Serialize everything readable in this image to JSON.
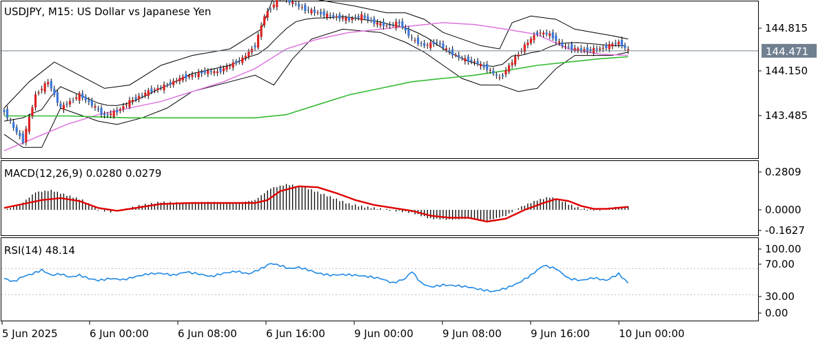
{
  "chart_data": {
    "type": "candlestick",
    "title": "USDJPY, M15:  US Dollar vs Japanese Yen",
    "symbol": "USDJPY",
    "timeframe": "M15",
    "description": "US Dollar vs Japanese Yen",
    "current_price": "144.471",
    "time_labels": [
      "5 Jun 2025",
      "6 Jun 00:00",
      "6 Jun 08:00",
      "6 Jun 16:00",
      "9 Jun 00:00",
      "9 Jun 08:00",
      "9 Jun 16:00",
      "10 Jun 00:00"
    ],
    "colors": {
      "bull": "#dd2222",
      "bear": "#3a78d8",
      "bollinger": "#000000",
      "ma_fast": "#e07de0",
      "ma_slow": "#33bb33",
      "macd_histogram": "#000000",
      "macd_signal": "#e00000",
      "rsi": "#1e88e5",
      "price_line": "#708090",
      "price_label_bg": "#708090"
    },
    "price_panel": {
      "ticks": [
        "144.815",
        "144.150",
        "143.485"
      ],
      "ylim": [
        142.9,
        145.55
      ],
      "price_path": [
        [
          0,
          143.55
        ],
        [
          3,
          143.3
        ],
        [
          6,
          143.1
        ],
        [
          10,
          143.8
        ],
        [
          14,
          144.0
        ],
        [
          18,
          143.6
        ],
        [
          24,
          143.8
        ],
        [
          28,
          143.65
        ],
        [
          32,
          143.48
        ],
        [
          36,
          143.55
        ],
        [
          40,
          143.7
        ],
        [
          46,
          143.85
        ],
        [
          52,
          143.95
        ],
        [
          56,
          144.05
        ],
        [
          60,
          144.1
        ],
        [
          64,
          144.15
        ],
        [
          68,
          144.15
        ],
        [
          72,
          144.25
        ],
        [
          76,
          144.35
        ],
        [
          80,
          144.55
        ],
        [
          83,
          145.0
        ],
        [
          88,
          145.3
        ],
        [
          92,
          145.2
        ],
        [
          96,
          145.1
        ],
        [
          100,
          145.05
        ],
        [
          104,
          145.0
        ],
        [
          110,
          144.95
        ],
        [
          114,
          145.0
        ],
        [
          118,
          144.9
        ],
        [
          122,
          144.85
        ],
        [
          126,
          144.9
        ],
        [
          130,
          144.65
        ],
        [
          134,
          144.55
        ],
        [
          138,
          144.6
        ],
        [
          142,
          144.45
        ],
        [
          146,
          144.35
        ],
        [
          150,
          144.3
        ],
        [
          154,
          144.2
        ],
        [
          158,
          144.05
        ],
        [
          162,
          144.3
        ],
        [
          166,
          144.55
        ],
        [
          170,
          144.75
        ],
        [
          174,
          144.72
        ],
        [
          178,
          144.55
        ],
        [
          182,
          144.5
        ],
        [
          186,
          144.48
        ],
        [
          190,
          144.5
        ],
        [
          194,
          144.57
        ],
        [
          196,
          144.6
        ],
        [
          199,
          144.47
        ]
      ],
      "bollinger_upper": [
        [
          0,
          143.6
        ],
        [
          8,
          144.0
        ],
        [
          16,
          144.3
        ],
        [
          24,
          144.1
        ],
        [
          32,
          143.9
        ],
        [
          40,
          143.95
        ],
        [
          50,
          144.25
        ],
        [
          60,
          144.4
        ],
        [
          72,
          144.5
        ],
        [
          82,
          144.8
        ],
        [
          86,
          145.3
        ],
        [
          92,
          145.45
        ],
        [
          100,
          145.25
        ],
        [
          112,
          145.15
        ],
        [
          122,
          145.05
        ],
        [
          128,
          145.05
        ],
        [
          134,
          144.95
        ],
        [
          140,
          144.75
        ],
        [
          146,
          144.65
        ],
        [
          152,
          144.55
        ],
        [
          158,
          144.5
        ],
        [
          162,
          144.9
        ],
        [
          168,
          145.0
        ],
        [
          176,
          144.95
        ],
        [
          182,
          144.8
        ],
        [
          188,
          144.75
        ],
        [
          194,
          144.7
        ],
        [
          199,
          144.65
        ]
      ],
      "bollinger_lower": [
        [
          0,
          143.2
        ],
        [
          6,
          143.0
        ],
        [
          12,
          143.0
        ],
        [
          18,
          143.6
        ],
        [
          24,
          143.5
        ],
        [
          30,
          143.4
        ],
        [
          36,
          143.35
        ],
        [
          44,
          143.45
        ],
        [
          52,
          143.6
        ],
        [
          60,
          143.85
        ],
        [
          72,
          144.0
        ],
        [
          80,
          144.1
        ],
        [
          86,
          143.95
        ],
        [
          92,
          144.35
        ],
        [
          98,
          144.65
        ],
        [
          108,
          144.8
        ],
        [
          120,
          144.75
        ],
        [
          128,
          144.6
        ],
        [
          134,
          144.45
        ],
        [
          140,
          144.25
        ],
        [
          146,
          144.05
        ],
        [
          152,
          143.95
        ],
        [
          158,
          143.95
        ],
        [
          164,
          143.85
        ],
        [
          170,
          143.9
        ],
        [
          176,
          144.2
        ],
        [
          182,
          144.4
        ],
        [
          188,
          144.4
        ],
        [
          194,
          144.4
        ],
        [
          199,
          144.45
        ]
      ],
      "ma_fast": [
        [
          0,
          142.95
        ],
        [
          10,
          143.15
        ],
        [
          20,
          143.35
        ],
        [
          30,
          143.5
        ],
        [
          40,
          143.6
        ],
        [
          50,
          143.7
        ],
        [
          60,
          143.85
        ],
        [
          70,
          144.0
        ],
        [
          80,
          144.2
        ],
        [
          90,
          144.5
        ],
        [
          100,
          144.65
        ],
        [
          110,
          144.75
        ],
        [
          120,
          144.8
        ],
        [
          130,
          144.85
        ],
        [
          140,
          144.9
        ],
        [
          150,
          144.87
        ],
        [
          160,
          144.8
        ],
        [
          170,
          144.72
        ],
        [
          180,
          144.5
        ],
        [
          190,
          144.42
        ],
        [
          199,
          144.4
        ]
      ],
      "ma_slow": [
        [
          0,
          143.48
        ],
        [
          20,
          143.48
        ],
        [
          40,
          143.45
        ],
        [
          60,
          143.45
        ],
        [
          80,
          143.45
        ],
        [
          90,
          143.5
        ],
        [
          100,
          143.65
        ],
        [
          110,
          143.8
        ],
        [
          120,
          143.9
        ],
        [
          130,
          144.0
        ],
        [
          140,
          144.05
        ],
        [
          150,
          144.1
        ],
        [
          160,
          144.17
        ],
        [
          170,
          144.25
        ],
        [
          180,
          144.3
        ],
        [
          190,
          144.35
        ],
        [
          199,
          144.38
        ]
      ]
    },
    "macd_panel": {
      "label": "MACD(12,26,9) 0.0280 0.0279",
      "ticks": [
        "0.2809",
        "0.0000",
        "-0.1627"
      ],
      "ylim": [
        -0.205,
        0.33
      ],
      "histogram": [
        [
          0,
          0.0
        ],
        [
          5,
          0.05
        ],
        [
          10,
          0.18
        ],
        [
          15,
          0.2
        ],
        [
          20,
          0.15
        ],
        [
          25,
          0.1
        ],
        [
          30,
          0.0
        ],
        [
          34,
          -0.02
        ],
        [
          38,
          0.0
        ],
        [
          44,
          0.05
        ],
        [
          50,
          0.08
        ],
        [
          58,
          0.07
        ],
        [
          66,
          0.08
        ],
        [
          74,
          0.07
        ],
        [
          80,
          0.1
        ],
        [
          85,
          0.22
        ],
        [
          90,
          0.26
        ],
        [
          95,
          0.24
        ],
        [
          100,
          0.18
        ],
        [
          105,
          0.12
        ],
        [
          110,
          0.06
        ],
        [
          115,
          0.03
        ],
        [
          120,
          0.01
        ],
        [
          125,
          -0.01
        ],
        [
          130,
          -0.03
        ],
        [
          136,
          -0.09
        ],
        [
          142,
          -0.1
        ],
        [
          148,
          -0.09
        ],
        [
          154,
          -0.11
        ],
        [
          160,
          -0.06
        ],
        [
          164,
          0.02
        ],
        [
          170,
          0.1
        ],
        [
          174,
          0.13
        ],
        [
          178,
          0.09
        ],
        [
          182,
          0.03
        ],
        [
          186,
          0.0
        ],
        [
          190,
          0.0
        ],
        [
          194,
          0.02
        ],
        [
          199,
          0.03
        ]
      ],
      "signal": [
        [
          0,
          0.02
        ],
        [
          6,
          0.06
        ],
        [
          12,
          0.1
        ],
        [
          18,
          0.12
        ],
        [
          24,
          0.09
        ],
        [
          30,
          0.02
        ],
        [
          36,
          -0.01
        ],
        [
          42,
          0.02
        ],
        [
          50,
          0.06
        ],
        [
          60,
          0.07
        ],
        [
          70,
          0.07
        ],
        [
          80,
          0.07
        ],
        [
          84,
          0.1
        ],
        [
          88,
          0.19
        ],
        [
          94,
          0.24
        ],
        [
          100,
          0.23
        ],
        [
          106,
          0.17
        ],
        [
          112,
          0.1
        ],
        [
          118,
          0.05
        ],
        [
          124,
          0.02
        ],
        [
          130,
          -0.01
        ],
        [
          136,
          -0.06
        ],
        [
          142,
          -0.08
        ],
        [
          148,
          -0.08
        ],
        [
          154,
          -0.12
        ],
        [
          160,
          -0.09
        ],
        [
          166,
          0.0
        ],
        [
          172,
          0.07
        ],
        [
          176,
          0.11
        ],
        [
          180,
          0.09
        ],
        [
          184,
          0.04
        ],
        [
          188,
          0.01
        ],
        [
          192,
          0.01
        ],
        [
          199,
          0.03
        ]
      ]
    },
    "rsi_panel": {
      "label": "RSI(14) 48.14",
      "ticks": [
        "100.00",
        "70.00",
        "30.00",
        "0.00"
      ],
      "ylim": [
        0,
        100
      ],
      "values": [
        [
          0,
          55
        ],
        [
          3,
          50
        ],
        [
          6,
          58
        ],
        [
          9,
          62
        ],
        [
          12,
          68
        ],
        [
          15,
          60
        ],
        [
          18,
          62
        ],
        [
          21,
          57
        ],
        [
          24,
          60
        ],
        [
          27,
          55
        ],
        [
          30,
          52
        ],
        [
          34,
          55
        ],
        [
          38,
          53
        ],
        [
          42,
          58
        ],
        [
          46,
          62
        ],
        [
          50,
          63
        ],
        [
          54,
          60
        ],
        [
          58,
          65
        ],
        [
          62,
          62
        ],
        [
          66,
          58
        ],
        [
          70,
          63
        ],
        [
          74,
          66
        ],
        [
          78,
          62
        ],
        [
          82,
          70
        ],
        [
          85,
          78
        ],
        [
          88,
          75
        ],
        [
          91,
          70
        ],
        [
          94,
          72
        ],
        [
          97,
          68
        ],
        [
          100,
          63
        ],
        [
          104,
          60
        ],
        [
          108,
          61
        ],
        [
          112,
          60
        ],
        [
          116,
          58
        ],
        [
          120,
          55
        ],
        [
          124,
          48
        ],
        [
          128,
          55
        ],
        [
          130,
          66
        ],
        [
          133,
          48
        ],
        [
          136,
          42
        ],
        [
          140,
          45
        ],
        [
          144,
          44
        ],
        [
          148,
          42
        ],
        [
          152,
          38
        ],
        [
          156,
          35
        ],
        [
          160,
          40
        ],
        [
          164,
          48
        ],
        [
          168,
          60
        ],
        [
          172,
          75
        ],
        [
          176,
          70
        ],
        [
          180,
          55
        ],
        [
          184,
          52
        ],
        [
          188,
          56
        ],
        [
          192,
          52
        ],
        [
          196,
          62
        ],
        [
          199,
          48
        ]
      ]
    }
  }
}
